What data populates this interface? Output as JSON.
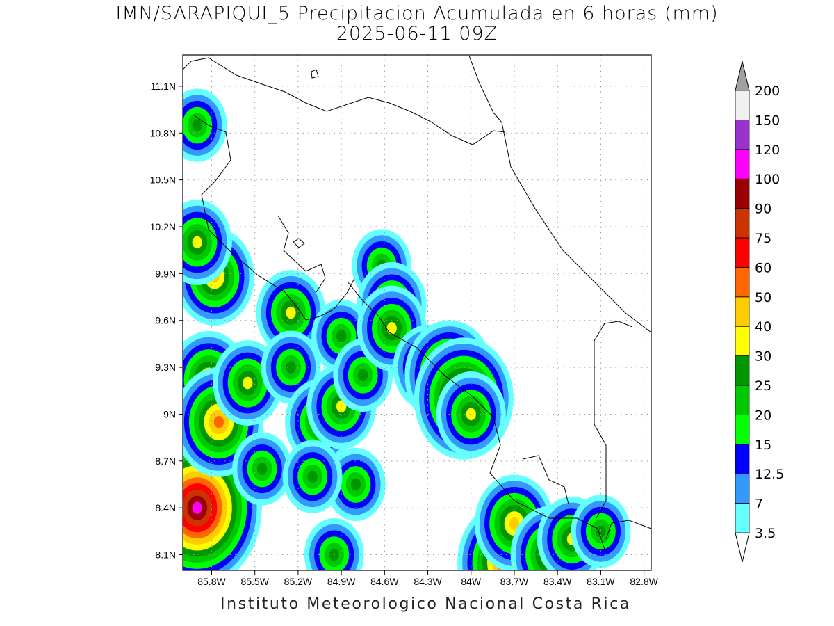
{
  "title": {
    "line1": "IMN/SARAPIQUI_5 Precipitacion Acumulada en 6 horas (mm)",
    "line2": "2025-06-11 09Z"
  },
  "footer": "Instituto Meteorologico Nacional Costa Rica",
  "map": {
    "lon_range": [
      -86.0,
      -82.75
    ],
    "lat_range": [
      8.0,
      11.3
    ],
    "y_ticks": [
      {
        "value": 11.1,
        "label": "11.1N"
      },
      {
        "value": 10.8,
        "label": "10.8N"
      },
      {
        "value": 10.5,
        "label": "10.5N"
      },
      {
        "value": 10.2,
        "label": "10.2N"
      },
      {
        "value": 9.9,
        "label": "9.9N"
      },
      {
        "value": 9.6,
        "label": "9.6N"
      },
      {
        "value": 9.3,
        "label": "9.3N"
      },
      {
        "value": 9.0,
        "label": "9N"
      },
      {
        "value": 8.7,
        "label": "8.7N"
      },
      {
        "value": 8.4,
        "label": "8.4N"
      },
      {
        "value": 8.1,
        "label": "8.1N"
      }
    ],
    "x_ticks": [
      {
        "value": -85.8,
        "label": "85.8W"
      },
      {
        "value": -85.5,
        "label": "85.5W"
      },
      {
        "value": -85.2,
        "label": "85.2W"
      },
      {
        "value": -84.9,
        "label": "84.9W"
      },
      {
        "value": -84.6,
        "label": "84.6W"
      },
      {
        "value": -84.3,
        "label": "84.3W"
      },
      {
        "value": -84.0,
        "label": "84W"
      },
      {
        "value": -83.7,
        "label": "83.7W"
      },
      {
        "value": -83.4,
        "label": "83.4W"
      },
      {
        "value": -83.1,
        "label": "83.1W"
      },
      {
        "value": -82.8,
        "label": "82.8W"
      }
    ],
    "grid": true,
    "colorbar": {
      "placement": "right",
      "levels": [
        {
          "label": "3.5",
          "color": "#66ffff"
        },
        {
          "label": "7",
          "color": "#3399ff"
        },
        {
          "label": "12.5",
          "color": "#0000ff"
        },
        {
          "label": "15",
          "color": "#00ff00"
        },
        {
          "label": "20",
          "color": "#00c800"
        },
        {
          "label": "25",
          "color": "#009600"
        },
        {
          "label": "30",
          "color": "#ffff00"
        },
        {
          "label": "40",
          "color": "#ffcc00"
        },
        {
          "label": "50",
          "color": "#ff6600"
        },
        {
          "label": "60",
          "color": "#ff0000"
        },
        {
          "label": "75",
          "color": "#cc3300"
        },
        {
          "label": "90",
          "color": "#990000"
        },
        {
          "label": "100",
          "color": "#ff00ff"
        },
        {
          "label": "120",
          "color": "#9933cc"
        },
        {
          "label": "150",
          "color": "#f0f0f0"
        },
        {
          "label": "200",
          "color": "#a0a0a0"
        }
      ],
      "under_color": "#ffffff",
      "over_color": "#a0a0a0"
    },
    "precip_cells": [
      {
        "lon": -85.93,
        "lat": 8.9,
        "level": 9
      },
      {
        "lon": -85.9,
        "lat": 8.55,
        "level": 10
      },
      {
        "lon": -85.9,
        "lat": 8.4,
        "level": 12
      },
      {
        "lon": -85.88,
        "lat": 9.1,
        "level": 9
      },
      {
        "lon": -85.82,
        "lat": 9.22,
        "level": 7
      },
      {
        "lon": -85.75,
        "lat": 8.95,
        "level": 8
      },
      {
        "lon": -85.78,
        "lat": 9.88,
        "level": 7
      },
      {
        "lon": -85.9,
        "lat": 10.1,
        "level": 6
      },
      {
        "lon": -85.9,
        "lat": 10.85,
        "level": 5
      },
      {
        "lon": -85.55,
        "lat": 9.2,
        "level": 6
      },
      {
        "lon": -85.45,
        "lat": 8.65,
        "level": 5
      },
      {
        "lon": -85.25,
        "lat": 9.65,
        "level": 6
      },
      {
        "lon": -85.25,
        "lat": 9.3,
        "level": 5
      },
      {
        "lon": -85.05,
        "lat": 8.95,
        "level": 6
      },
      {
        "lon": -84.9,
        "lat": 9.05,
        "level": 6
      },
      {
        "lon": -84.9,
        "lat": 9.5,
        "level": 5
      },
      {
        "lon": -84.75,
        "lat": 9.25,
        "level": 5
      },
      {
        "lon": -84.62,
        "lat": 9.95,
        "level": 5
      },
      {
        "lon": -84.55,
        "lat": 9.7,
        "level": 6
      },
      {
        "lon": -84.55,
        "lat": 9.55,
        "level": 6
      },
      {
        "lon": -84.3,
        "lat": 9.3,
        "level": 6
      },
      {
        "lon": -84.15,
        "lat": 9.25,
        "level": 8
      },
      {
        "lon": -84.05,
        "lat": 9.1,
        "level": 9
      },
      {
        "lon": -84.0,
        "lat": 9.0,
        "level": 6
      },
      {
        "lon": -83.75,
        "lat": 8.05,
        "level": 9
      },
      {
        "lon": -83.7,
        "lat": 8.3,
        "level": 7
      },
      {
        "lon": -83.45,
        "lat": 8.1,
        "level": 7
      },
      {
        "lon": -83.3,
        "lat": 8.2,
        "level": 6
      },
      {
        "lon": -83.1,
        "lat": 8.25,
        "level": 5
      },
      {
        "lon": -84.8,
        "lat": 8.55,
        "level": 5
      },
      {
        "lon": -84.95,
        "lat": 8.1,
        "level": 5
      },
      {
        "lon": -85.1,
        "lat": 8.6,
        "level": 5
      }
    ]
  }
}
